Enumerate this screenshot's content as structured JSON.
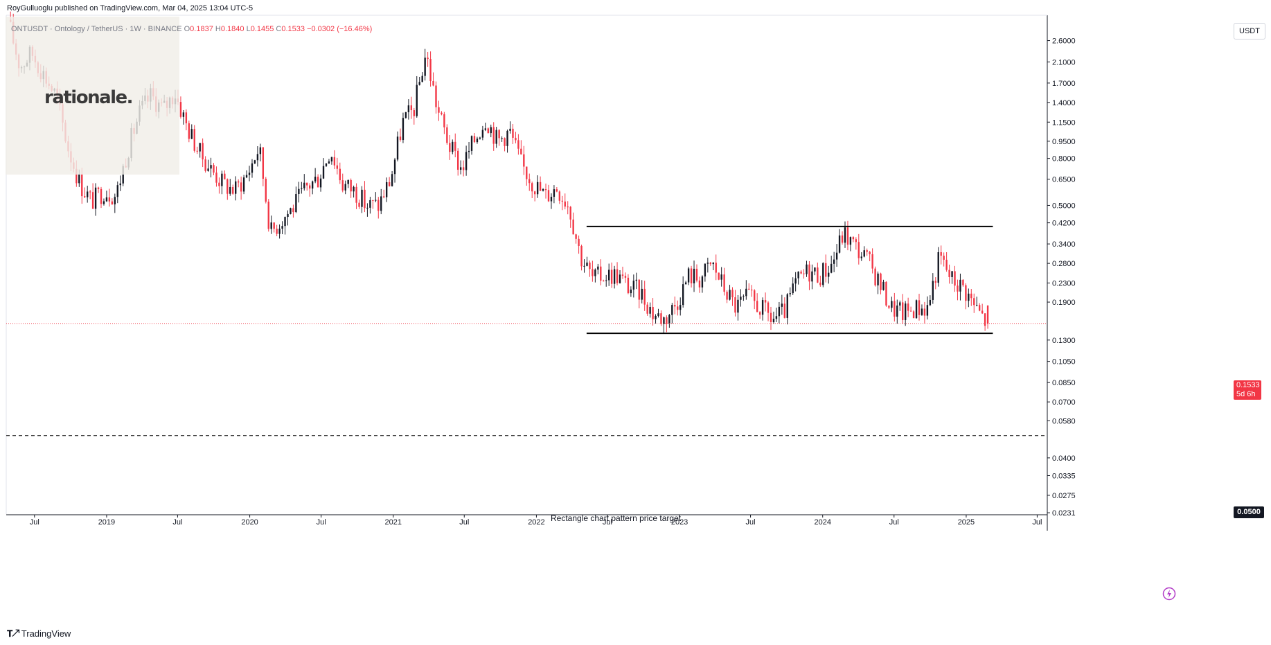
{
  "header": {
    "publisher": "RoyGulluoglu published on TradingView.com,",
    "date": "Mar 04, 2025 13:04 UTC-5"
  },
  "symbol_info": {
    "symbol": "ONTUSDT · Ontology / TetherUS · 1W · BINANCE",
    "open_label": "O",
    "open": "0.1837",
    "high_label": "H",
    "high": "0.1840",
    "low_label": "L",
    "low": "0.1455",
    "close_label": "C",
    "close": "0.1533",
    "change": "−0.0302 (−16.46%)"
  },
  "watermark": {
    "text": "rationale."
  },
  "currency": "USDT",
  "badges": {
    "current_price": "0.1533",
    "countdown": "5d 6h",
    "target_price": "0.0500"
  },
  "annotation": {
    "target_text": "Rectangle chart pattern price target"
  },
  "footer": {
    "brand": "TradingView"
  },
  "colors": {
    "up": "#131722",
    "down": "#f23645",
    "background": "#ffffff",
    "grid": "#f0f3fa"
  },
  "chart_data": {
    "type": "candlestick",
    "timeframe": "1W",
    "y_scale": "log",
    "ylim": [
      0.0228,
      3.35
    ],
    "xlim": [
      "2018-04-20",
      "2025-07-25"
    ],
    "y_ticks": [
      2.6,
      2.1,
      1.7,
      1.4,
      1.15,
      0.95,
      0.8,
      0.65,
      0.5,
      0.42,
      0.34,
      0.28,
      0.23,
      0.19,
      0.13,
      0.105,
      0.085,
      0.07,
      0.058,
      0.04,
      0.0335,
      0.0275,
      0.0231
    ],
    "y_tick_labels": [
      "2.6000",
      "2.1000",
      "1.7000",
      "1.4000",
      "1.1500",
      "0.9500",
      "0.8000",
      "0.6500",
      "0.5000",
      "0.4200",
      "0.3400",
      "0.2800",
      "0.2300",
      "0.1900",
      "0.1300",
      "0.1050",
      "0.0850",
      "0.0700",
      "0.0580",
      "0.0400",
      "0.0335",
      "0.0275",
      "0.0231"
    ],
    "x_ticks": [
      {
        "label": "Jul",
        "date": "2018-07-01"
      },
      {
        "label": "2019",
        "date": "2019-01-01"
      },
      {
        "label": "Jul",
        "date": "2019-07-01"
      },
      {
        "label": "2020",
        "date": "2020-01-01"
      },
      {
        "label": "Jul",
        "date": "2020-07-01"
      },
      {
        "label": "2021",
        "date": "2021-01-01"
      },
      {
        "label": "Jul",
        "date": "2021-07-01"
      },
      {
        "label": "2022",
        "date": "2022-01-01"
      },
      {
        "label": "Jul",
        "date": "2022-07-01"
      },
      {
        "label": "2023",
        "date": "2023-01-01"
      },
      {
        "label": "Jul",
        "date": "2023-07-01"
      },
      {
        "label": "2024",
        "date": "2024-01-01"
      },
      {
        "label": "Jul",
        "date": "2024-07-01"
      },
      {
        "label": "2025",
        "date": "2025-01-01"
      },
      {
        "label": "Jul",
        "date": "2025-07-01"
      }
    ],
    "close_anchors": [
      [
        "2018-05-01",
        3.2
      ],
      [
        "2018-06-01",
        2.0
      ],
      [
        "2018-07-01",
        2.3
      ],
      [
        "2018-08-01",
        1.85
      ],
      [
        "2018-09-01",
        1.5
      ],
      [
        "2018-10-01",
        0.9
      ],
      [
        "2018-11-01",
        0.62
      ],
      [
        "2018-12-01",
        0.52
      ],
      [
        "2019-01-01",
        0.58
      ],
      [
        "2019-02-01",
        0.55
      ],
      [
        "2019-03-01",
        0.85
      ],
      [
        "2019-04-01",
        1.25
      ],
      [
        "2019-05-01",
        1.5
      ],
      [
        "2019-06-01",
        1.3
      ],
      [
        "2019-07-01",
        1.55
      ],
      [
        "2019-08-01",
        1.1
      ],
      [
        "2019-09-01",
        0.85
      ],
      [
        "2019-10-01",
        0.72
      ],
      [
        "2019-11-01",
        0.62
      ],
      [
        "2019-12-01",
        0.58
      ],
      [
        "2020-01-01",
        0.68
      ],
      [
        "2020-02-01",
        0.9
      ],
      [
        "2020-03-01",
        0.38
      ],
      [
        "2020-04-01",
        0.44
      ],
      [
        "2020-05-01",
        0.5
      ],
      [
        "2020-06-01",
        0.6
      ],
      [
        "2020-07-01",
        0.66
      ],
      [
        "2020-08-01",
        0.88
      ],
      [
        "2020-09-01",
        0.62
      ],
      [
        "2020-10-01",
        0.58
      ],
      [
        "2020-11-01",
        0.5
      ],
      [
        "2020-12-01",
        0.5
      ],
      [
        "2021-01-01",
        0.65
      ],
      [
        "2021-02-01",
        1.15
      ],
      [
        "2021-03-01",
        1.3
      ],
      [
        "2021-04-01",
        2.3
      ],
      [
        "2021-05-01",
        1.3
      ],
      [
        "2021-06-01",
        0.9
      ],
      [
        "2021-07-01",
        0.72
      ],
      [
        "2021-08-01",
        0.95
      ],
      [
        "2021-09-01",
        1.2
      ],
      [
        "2021-10-01",
        0.95
      ],
      [
        "2021-11-01",
        1.05
      ],
      [
        "2021-12-01",
        0.75
      ],
      [
        "2022-01-01",
        0.62
      ],
      [
        "2022-02-01",
        0.55
      ],
      [
        "2022-03-01",
        0.6
      ],
      [
        "2022-04-01",
        0.5
      ],
      [
        "2022-05-01",
        0.3
      ],
      [
        "2022-06-01",
        0.24
      ],
      [
        "2022-07-01",
        0.25
      ],
      [
        "2022-08-01",
        0.25
      ],
      [
        "2022-09-01",
        0.22
      ],
      [
        "2022-10-01",
        0.21
      ],
      [
        "2022-11-01",
        0.17
      ],
      [
        "2022-12-01",
        0.16
      ],
      [
        "2023-01-01",
        0.19
      ],
      [
        "2023-02-01",
        0.25
      ],
      [
        "2023-03-01",
        0.24
      ],
      [
        "2023-04-01",
        0.28
      ],
      [
        "2023-05-01",
        0.22
      ],
      [
        "2023-06-01",
        0.18
      ],
      [
        "2023-07-01",
        0.2
      ],
      [
        "2023-08-01",
        0.18
      ],
      [
        "2023-09-01",
        0.16
      ],
      [
        "2023-10-01",
        0.17
      ],
      [
        "2023-11-01",
        0.23
      ],
      [
        "2023-12-01",
        0.26
      ],
      [
        "2024-01-01",
        0.25
      ],
      [
        "2024-02-01",
        0.28
      ],
      [
        "2024-03-01",
        0.38
      ],
      [
        "2024-04-01",
        0.33
      ],
      [
        "2024-05-01",
        0.29
      ],
      [
        "2024-06-01",
        0.23
      ],
      [
        "2024-07-01",
        0.18
      ],
      [
        "2024-08-01",
        0.17
      ],
      [
        "2024-09-01",
        0.18
      ],
      [
        "2024-10-01",
        0.18
      ],
      [
        "2024-11-01",
        0.3
      ],
      [
        "2024-12-01",
        0.24
      ],
      [
        "2025-01-01",
        0.22
      ],
      [
        "2025-02-01",
        0.18
      ],
      [
        "2025-03-03",
        0.1533
      ]
    ],
    "last_bar": {
      "open": 0.1837,
      "high": 0.184,
      "low": 0.1455,
      "close": 0.1533
    },
    "rectangle_pattern": {
      "start": "2022-05-09",
      "end": "2025-03-10",
      "top": 0.405,
      "bottom": 0.139
    },
    "price_target": {
      "value": 0.05,
      "label": "Rectangle chart pattern price target"
    },
    "current_price": 0.1533
  }
}
